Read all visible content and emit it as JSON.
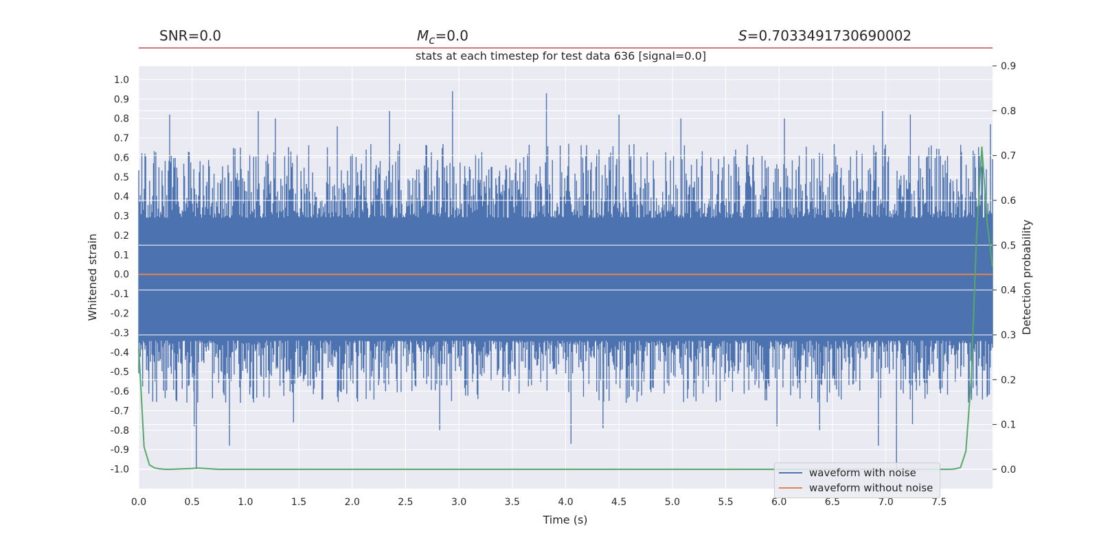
{
  "header": {
    "snr_value": "=0.0",
    "mc_value": "=0.0",
    "s_value": "=0.7033491730690002"
  },
  "chart_data": {
    "type": "line",
    "title": "stats at each timestep for test data 636 [signal=0.0]",
    "xlabel": "Time (s)",
    "ylabel": "Whitened strain",
    "ylabel_right": "Detection probability",
    "xlim": [
      0.0,
      8.0
    ],
    "ylim": [
      -1.1,
      1.07
    ],
    "ylim_right": [
      -0.043,
      0.9
    ],
    "grid": true,
    "legend_position": "bottom-right",
    "x_ticks": [
      "0.0",
      "0.5",
      "1.0",
      "1.5",
      "2.0",
      "2.5",
      "3.0",
      "3.5",
      "4.0",
      "4.5",
      "5.0",
      "5.5",
      "6.0",
      "6.5",
      "7.0",
      "7.5"
    ],
    "y_ticks": [
      "1.0",
      "0.9",
      "0.8",
      "0.7",
      "0.6",
      "0.5",
      "0.4",
      "0.3",
      "0.2",
      "0.1",
      "0.0",
      "-0.1",
      "-0.2",
      "-0.3",
      "-0.4",
      "-0.5",
      "-0.6",
      "-0.7",
      "-0.8",
      "-0.9",
      "-1.0"
    ],
    "y_ticks_right": [
      "0.9",
      "0.8",
      "0.7",
      "0.6",
      "0.5",
      "0.4",
      "0.3",
      "0.2",
      "0.1",
      "0.0"
    ],
    "threshold_line": {
      "y": 0.94,
      "color": "#c44e52"
    },
    "series": [
      {
        "name": "waveform with noise",
        "color": "#4c72b0",
        "axis": "left",
        "style": "dense-noise",
        "band_upper": 0.29,
        "band_lower": -0.34,
        "peaks_upper": [
          [
            0.29,
            0.82
          ],
          [
            1.12,
            0.84
          ],
          [
            1.28,
            0.8
          ],
          [
            1.86,
            0.76
          ],
          [
            2.35,
            0.84
          ],
          [
            2.94,
            0.94
          ],
          [
            3.82,
            0.93
          ],
          [
            4.5,
            0.82
          ],
          [
            5.08,
            0.8
          ],
          [
            6.05,
            0.8
          ],
          [
            6.97,
            0.84
          ],
          [
            7.23,
            0.82
          ],
          [
            7.98,
            0.77
          ]
        ],
        "peaks_lower": [
          [
            0.52,
            -0.78
          ],
          [
            0.54,
            -1.0
          ],
          [
            0.85,
            -0.88
          ],
          [
            1.45,
            -0.76
          ],
          [
            2.82,
            -0.8
          ],
          [
            4.05,
            -0.87
          ],
          [
            4.35,
            -0.79
          ],
          [
            5.98,
            -0.78
          ],
          [
            6.38,
            -0.8
          ],
          [
            6.93,
            -0.88
          ],
          [
            7.1,
            -1.0
          ],
          [
            7.25,
            -0.77
          ]
        ]
      },
      {
        "name": "waveform without noise",
        "color": "#dd8452",
        "axis": "left",
        "x": [
          0.0,
          8.0
        ],
        "y": [
          0.0,
          0.0
        ]
      },
      {
        "name": "detection probability",
        "color": "#55a868",
        "axis": "right",
        "x": [
          0.0,
          0.05,
          0.1,
          0.15,
          0.2,
          0.25,
          0.3,
          0.4,
          0.5,
          0.55,
          0.75,
          1.0,
          2.0,
          3.0,
          4.0,
          5.0,
          6.0,
          7.0,
          7.6,
          7.65,
          7.7,
          7.75,
          7.8,
          7.85,
          7.9,
          7.95,
          8.0
        ],
        "y": [
          0.27,
          0.05,
          0.01,
          0.003,
          0.001,
          0.0,
          0.0,
          0.001,
          0.002,
          0.003,
          0.0,
          0.0,
          0.0,
          0.0,
          0.0,
          0.0,
          0.0,
          0.0,
          0.0,
          0.001,
          0.004,
          0.04,
          0.2,
          0.52,
          0.72,
          0.55,
          0.45
        ]
      }
    ]
  }
}
